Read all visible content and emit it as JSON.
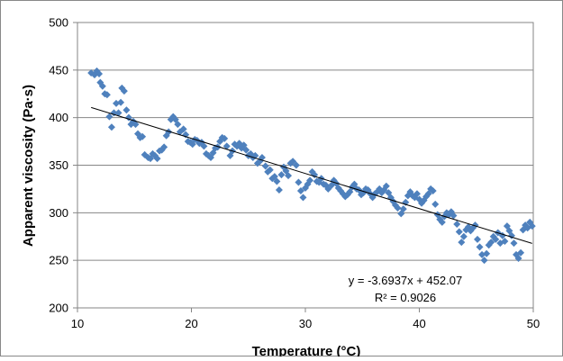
{
  "chart_data": {
    "type": "scatter",
    "title": "",
    "xlabel": "Temperature (°C)",
    "ylabel": "Apparent viscosity (Pa·s)",
    "xlim": [
      10,
      50
    ],
    "ylim": [
      200,
      500
    ],
    "xticks": [
      10,
      20,
      30,
      40,
      50
    ],
    "yticks": [
      200,
      250,
      300,
      350,
      400,
      450,
      500
    ],
    "grid": "horizontal",
    "legend": "none",
    "marker_color": "#4f81bd",
    "trendline": {
      "type": "linear",
      "slope": -3.6937,
      "intercept": 452.07,
      "x_range": [
        11.2,
        49.9
      ],
      "equation_label": "y = -3.6937x + 452.07",
      "r2_label": "R² = 0.9026"
    },
    "series": [
      {
        "points": [
          [
            11.2,
            447
          ],
          [
            11.5,
            445
          ],
          [
            11.7,
            449
          ],
          [
            11.9,
            446
          ],
          [
            12.0,
            437
          ],
          [
            12.2,
            433
          ],
          [
            12.4,
            425
          ],
          [
            12.6,
            424
          ],
          [
            12.8,
            401
          ],
          [
            13.0,
            390
          ],
          [
            13.2,
            405
          ],
          [
            13.4,
            415
          ],
          [
            13.6,
            405
          ],
          [
            13.8,
            416
          ],
          [
            13.9,
            431
          ],
          [
            14.1,
            428
          ],
          [
            14.3,
            408
          ],
          [
            14.5,
            400
          ],
          [
            14.7,
            393
          ],
          [
            14.9,
            396
          ],
          [
            15.1,
            393
          ],
          [
            15.3,
            383
          ],
          [
            15.5,
            379
          ],
          [
            15.7,
            380
          ],
          [
            15.9,
            361
          ],
          [
            16.2,
            358
          ],
          [
            16.4,
            357
          ],
          [
            16.6,
            362
          ],
          [
            16.8,
            360
          ],
          [
            17.0,
            357
          ],
          [
            17.2,
            365
          ],
          [
            17.4,
            366
          ],
          [
            17.6,
            369
          ],
          [
            17.8,
            381
          ],
          [
            18.0,
            385
          ],
          [
            18.2,
            398
          ],
          [
            18.4,
            401
          ],
          [
            18.6,
            398
          ],
          [
            18.8,
            393
          ],
          [
            19.0,
            385
          ],
          [
            19.3,
            388
          ],
          [
            19.5,
            382
          ],
          [
            19.7,
            375
          ],
          [
            19.9,
            374
          ],
          [
            20.1,
            372
          ],
          [
            20.3,
            377
          ],
          [
            20.5,
            376
          ],
          [
            20.7,
            373
          ],
          [
            20.9,
            374
          ],
          [
            21.1,
            370
          ],
          [
            21.3,
            362
          ],
          [
            21.5,
            360
          ],
          [
            21.7,
            358
          ],
          [
            21.9,
            363
          ],
          [
            22.1,
            368
          ],
          [
            22.3,
            369
          ],
          [
            22.5,
            375
          ],
          [
            22.7,
            379
          ],
          [
            22.9,
            378
          ],
          [
            23.1,
            370
          ],
          [
            23.4,
            360
          ],
          [
            23.6,
            365
          ],
          [
            23.8,
            372
          ],
          [
            24.0,
            370
          ],
          [
            24.2,
            373
          ],
          [
            24.4,
            368
          ],
          [
            24.6,
            371
          ],
          [
            24.8,
            366
          ],
          [
            25.0,
            360
          ],
          [
            25.2,
            362
          ],
          [
            25.4,
            358
          ],
          [
            25.6,
            360
          ],
          [
            25.8,
            352
          ],
          [
            26.0,
            354
          ],
          [
            26.2,
            358
          ],
          [
            26.5,
            349
          ],
          [
            26.7,
            343
          ],
          [
            26.9,
            345
          ],
          [
            27.1,
            336
          ],
          [
            27.3,
            338
          ],
          [
            27.5,
            333
          ],
          [
            27.7,
            324
          ],
          [
            27.9,
            340
          ],
          [
            28.1,
            348
          ],
          [
            28.3,
            344
          ],
          [
            28.5,
            339
          ],
          [
            28.7,
            352
          ],
          [
            28.9,
            354
          ],
          [
            29.2,
            350
          ],
          [
            29.4,
            332
          ],
          [
            29.6,
            323
          ],
          [
            29.8,
            316
          ],
          [
            30.0,
            326
          ],
          [
            30.2,
            330
          ],
          [
            30.4,
            334
          ],
          [
            30.6,
            343
          ],
          [
            30.8,
            340
          ],
          [
            31.0,
            333
          ],
          [
            31.2,
            332
          ],
          [
            31.4,
            336
          ],
          [
            31.6,
            330
          ],
          [
            31.8,
            329
          ],
          [
            32.0,
            325
          ],
          [
            32.3,
            329
          ],
          [
            32.5,
            334
          ],
          [
            32.7,
            331
          ],
          [
            32.9,
            326
          ],
          [
            33.1,
            323
          ],
          [
            33.3,
            320
          ],
          [
            33.5,
            317
          ],
          [
            33.7,
            319
          ],
          [
            33.9,
            322
          ],
          [
            34.1,
            327
          ],
          [
            34.3,
            330
          ],
          [
            34.5,
            325
          ],
          [
            34.7,
            324
          ],
          [
            34.9,
            319
          ],
          [
            35.1,
            321
          ],
          [
            35.3,
            325
          ],
          [
            35.5,
            324
          ],
          [
            35.7,
            320
          ],
          [
            35.9,
            316
          ],
          [
            36.1,
            320
          ],
          [
            36.3,
            322
          ],
          [
            36.5,
            325
          ],
          [
            36.7,
            321
          ],
          [
            36.9,
            324
          ],
          [
            37.1,
            328
          ],
          [
            37.3,
            321
          ],
          [
            37.5,
            316
          ],
          [
            37.7,
            312
          ],
          [
            37.9,
            308
          ],
          [
            38.1,
            305
          ],
          [
            38.4,
            299
          ],
          [
            38.6,
            304
          ],
          [
            38.8,
            311
          ],
          [
            39.0,
            318
          ],
          [
            39.2,
            322
          ],
          [
            39.4,
            318
          ],
          [
            39.6,
            316
          ],
          [
            39.8,
            320
          ],
          [
            40.0,
            314
          ],
          [
            40.2,
            310
          ],
          [
            40.4,
            313
          ],
          [
            40.6,
            317
          ],
          [
            40.8,
            320
          ],
          [
            41.0,
            325
          ],
          [
            41.2,
            323
          ],
          [
            41.4,
            309
          ],
          [
            41.6,
            298
          ],
          [
            41.8,
            293
          ],
          [
            42.0,
            290
          ],
          [
            42.2,
            296
          ],
          [
            42.4,
            300
          ],
          [
            42.6,
            298
          ],
          [
            42.8,
            301
          ],
          [
            43.0,
            297
          ],
          [
            43.3,
            288
          ],
          [
            43.5,
            280
          ],
          [
            43.7,
            269
          ],
          [
            43.9,
            275
          ],
          [
            44.1,
            282
          ],
          [
            44.3,
            285
          ],
          [
            44.5,
            281
          ],
          [
            44.7,
            284
          ],
          [
            44.9,
            287
          ],
          [
            45.1,
            272
          ],
          [
            45.3,
            264
          ],
          [
            45.5,
            256
          ],
          [
            45.7,
            250
          ],
          [
            45.9,
            257
          ],
          [
            46.1,
            266
          ],
          [
            46.3,
            269
          ],
          [
            46.5,
            275
          ],
          [
            46.7,
            272
          ],
          [
            46.9,
            279
          ],
          [
            47.1,
            268
          ],
          [
            47.3,
            276
          ],
          [
            47.5,
            270
          ],
          [
            47.7,
            286
          ],
          [
            47.9,
            281
          ],
          [
            48.1,
            276
          ],
          [
            48.3,
            268
          ],
          [
            48.5,
            256
          ],
          [
            48.7,
            252
          ],
          [
            48.9,
            258
          ],
          [
            49.1,
            282
          ],
          [
            49.3,
            287
          ],
          [
            49.5,
            284
          ],
          [
            49.7,
            290
          ],
          [
            49.9,
            286
          ]
        ]
      }
    ]
  }
}
